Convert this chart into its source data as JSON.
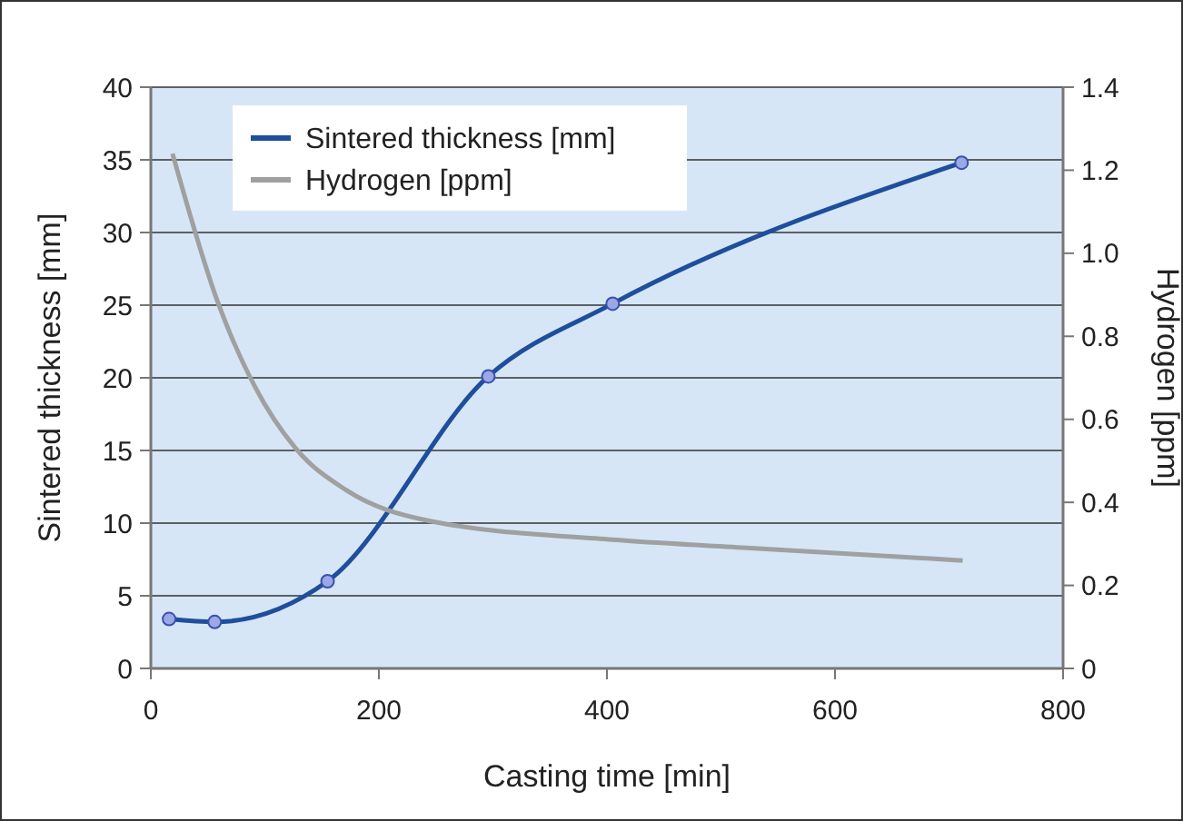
{
  "chart_data": {
    "type": "line",
    "xlabel": "Casting time [min]",
    "ylabel": "Sintered thickness [mm]",
    "y2label": "Hydrogen [ppm]",
    "xlim": [
      0,
      800
    ],
    "xticks": [
      0,
      200,
      400,
      600,
      800
    ],
    "ylim": [
      0,
      40
    ],
    "yticks": [
      0,
      5,
      10,
      15,
      20,
      25,
      30,
      35,
      40
    ],
    "y2lim": [
      0,
      1.4
    ],
    "y2ticks": [
      {
        "value": 0,
        "label": "0"
      },
      {
        "value": 0.2,
        "label": "0.2"
      },
      {
        "value": 0.4,
        "label": "0.4"
      },
      {
        "value": 0.6,
        "label": "0.6"
      },
      {
        "value": 0.8,
        "label": "0.8"
      },
      {
        "value": 1,
        "label": "1.0"
      },
      {
        "value": 1.2,
        "label": "1.2"
      },
      {
        "value": 1.4,
        "label": "1.4"
      }
    ],
    "grid": "y",
    "legend": "top left",
    "series": [
      {
        "name": "Sintered thickness [mm]",
        "color": "#1f4e9c",
        "marker": "circle",
        "x": [
          16,
          56,
          155,
          296,
          405,
          711
        ],
        "values": [
          3.4,
          3.2,
          6.0,
          20.1,
          25.1,
          34.8
        ]
      },
      {
        "name": "Hydrogen [ppm]",
        "color": "#a0a0a0",
        "marker": "none",
        "axis": "y2",
        "x": [
          19,
          59,
          91,
          127,
          171,
          245,
          405,
          526,
          712
        ],
        "values": [
          1.24,
          0.88,
          0.68,
          0.53,
          0.43,
          0.355,
          0.31,
          0.29,
          0.26
        ]
      }
    ]
  }
}
